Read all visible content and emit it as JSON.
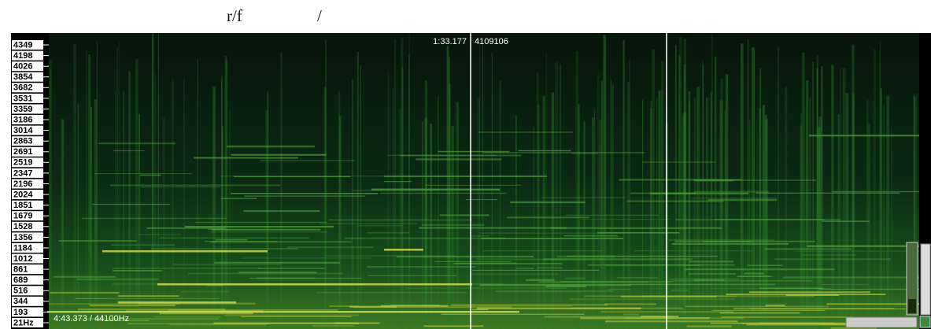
{
  "header": {
    "title_left": "r/f",
    "title_right": "/"
  },
  "frequency_axis": {
    "labels": [
      "4349",
      "4198",
      "4026",
      "3854",
      "3682",
      "3531",
      "3359",
      "3186",
      "3014",
      "2863",
      "2691",
      "2519",
      "2347",
      "2196",
      "2024",
      "1851",
      "1679",
      "1528",
      "1356",
      "1184",
      "1012",
      "861",
      "689",
      "516",
      "344",
      "193",
      "21Hz"
    ]
  },
  "cursor": {
    "time": "1:33.177",
    "sample": "4109106"
  },
  "status": {
    "duration_rate": "4:43.373 / 44100Hz"
  }
}
